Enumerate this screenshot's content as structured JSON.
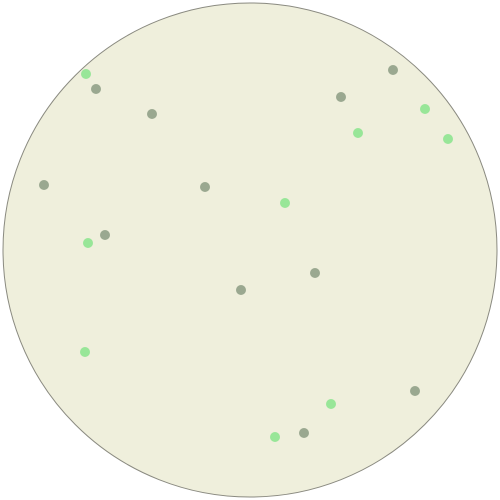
{
  "colors": {
    "background": "#ffffff",
    "board_fill": "#efefdc",
    "board_stroke": "#8a8a80",
    "dot_gray": "#9aa890",
    "dot_green": "#98e698"
  },
  "board": {
    "shape": "circle",
    "dots": [
      {
        "kind": "green"
      },
      {
        "kind": "gray"
      },
      {
        "kind": "gray"
      },
      {
        "kind": "gray"
      },
      {
        "kind": "green"
      },
      {
        "kind": "green"
      },
      {
        "kind": "green"
      },
      {
        "kind": "gray"
      },
      {
        "kind": "gray"
      },
      {
        "kind": "green"
      },
      {
        "kind": "gray"
      },
      {
        "kind": "green"
      },
      {
        "kind": "gray"
      },
      {
        "kind": "gray"
      },
      {
        "kind": "green"
      },
      {
        "kind": "gray"
      },
      {
        "kind": "green"
      },
      {
        "kind": "green"
      },
      {
        "kind": "gray"
      }
    ]
  }
}
